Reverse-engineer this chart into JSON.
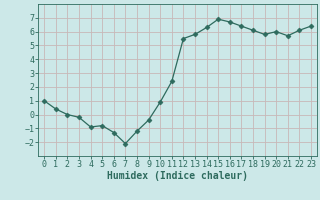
{
  "x": [
    0,
    1,
    2,
    3,
    4,
    5,
    6,
    7,
    8,
    9,
    10,
    11,
    12,
    13,
    14,
    15,
    16,
    17,
    18,
    19,
    20,
    21,
    22,
    23
  ],
  "y": [
    1.0,
    0.4,
    0.0,
    -0.2,
    -0.9,
    -0.8,
    -1.3,
    -2.1,
    -1.2,
    -0.4,
    0.9,
    2.4,
    5.5,
    5.8,
    6.3,
    6.9,
    6.7,
    6.4,
    6.1,
    5.8,
    6.0,
    5.7,
    6.1,
    6.4
  ],
  "line_color": "#2e6b5e",
  "marker": "D",
  "marker_size": 2.5,
  "bg_color": "#cce8e8",
  "grid_color": "#c8b8b8",
  "xlabel": "Humidex (Indice chaleur)",
  "xlabel_fontsize": 7,
  "tick_fontsize": 6,
  "ylim": [
    -3,
    8
  ],
  "xlim": [
    -0.5,
    23.5
  ],
  "yticks": [
    -2,
    -1,
    0,
    1,
    2,
    3,
    4,
    5,
    6,
    7
  ],
  "xticks": [
    0,
    1,
    2,
    3,
    4,
    5,
    6,
    7,
    8,
    9,
    10,
    11,
    12,
    13,
    14,
    15,
    16,
    17,
    18,
    19,
    20,
    21,
    22,
    23
  ]
}
